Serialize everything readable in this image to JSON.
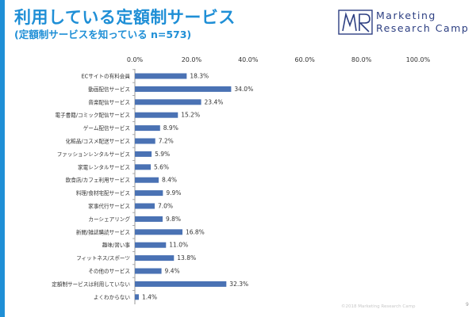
{
  "header": {
    "title": "利用している定額制サービス",
    "subtitle": "(定額制サービスを知っている n=573)"
  },
  "brand": {
    "line1": "Marketing",
    "line2": "Research Camp",
    "logo_letters": "MR"
  },
  "footer": {
    "copyright": "©2018 Marketing Research Camp",
    "page_number": "9"
  },
  "colors": {
    "accent": "#1f8fd6",
    "bar": "#4a72b4",
    "title": "#1f8fd6",
    "text": "#333333",
    "logo": "#2d3f82"
  },
  "chart_data": {
    "type": "bar",
    "orientation": "horizontal",
    "title": "",
    "xlabel": "",
    "ylabel": "",
    "xlim": [
      0,
      100
    ],
    "ticks": [
      "0.0%",
      "20.0%",
      "40.0%",
      "60.0%",
      "80.0%",
      "100.0%"
    ],
    "tick_values": [
      0,
      20,
      40,
      60,
      80,
      100
    ],
    "grid": false,
    "categories": [
      "ECサイトの有料会員",
      "動画配信サービス",
      "音楽配信サービス",
      "電子書籍/コミック配信サービス",
      "ゲーム配信サービス",
      "化粧品/コスメ配送サービス",
      "ファッションレンタルサービス",
      "家電レンタルサービス",
      "飲食店/カフェ利用サービス",
      "料理/食材宅配サービス",
      "家事代行サービス",
      "カーシェアリング",
      "新聞/雑誌購読サービス",
      "趣味/習い事",
      "フィットネス/スポーツ",
      "その他のサービス",
      "定額制サービスは利用していない",
      "よくわからない"
    ],
    "values": [
      18.3,
      34.0,
      23.4,
      15.2,
      8.9,
      7.2,
      5.9,
      5.6,
      8.4,
      9.9,
      7.0,
      9.8,
      16.8,
      11.0,
      13.8,
      9.4,
      32.3,
      1.4
    ],
    "value_labels": [
      "18.3%",
      "34.0%",
      "23.4%",
      "15.2%",
      "8.9%",
      "7.2%",
      "5.9%",
      "5.6%",
      "8.4%",
      "9.9%",
      "7.0%",
      "9.8%",
      "16.8%",
      "11.0%",
      "13.8%",
      "9.4%",
      "32.3%",
      "1.4%"
    ]
  }
}
